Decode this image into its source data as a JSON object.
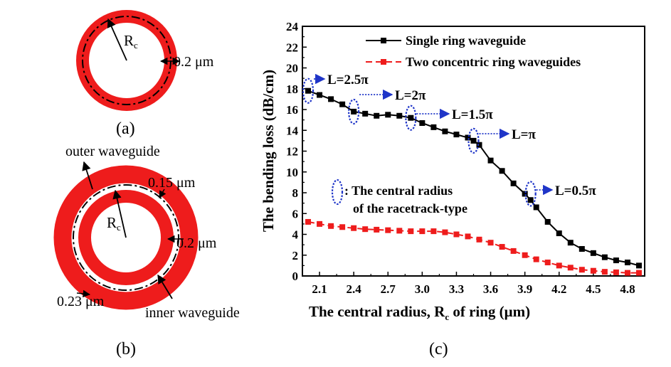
{
  "panels": {
    "a": {
      "caption": "(a)",
      "radius_label": "R",
      "radius_sub": "c",
      "width_label": "0.2 μm"
    },
    "b": {
      "caption": "(b)",
      "outer_label": "outer waveguide",
      "inner_label": "inner waveguide",
      "gap_label": "0.15 μm",
      "inner_width_label": "0.2 μm",
      "outer_width_label": "0.23 μm",
      "radius_label": "R",
      "radius_sub": "c"
    },
    "c": {
      "caption": "(c)"
    }
  },
  "colors": {
    "ring": "#ee1c1c",
    "single": "#000000",
    "concentric": "#ee1c1c",
    "annotation": "#1f35c8"
  },
  "chart_data": {
    "type": "line",
    "xlabel": "The central radius, R",
    "xlabel_sub": "c",
    "xlabel_tail": " of ring (μm)",
    "ylabel": "The bending loss (dB/cm)",
    "xlim": [
      1.95,
      4.95
    ],
    "ylim": [
      0,
      24
    ],
    "xticks": [
      2.1,
      2.4,
      2.7,
      3.0,
      3.3,
      3.6,
      3.9,
      4.2,
      4.5,
      4.8
    ],
    "xtick_labels": [
      "2.1",
      "2.4",
      "2.7",
      "3.0",
      "3.3",
      "3.6",
      "3.9",
      "4.2",
      "4.5",
      "4.8"
    ],
    "yticks": [
      0,
      2,
      4,
      6,
      8,
      10,
      12,
      14,
      16,
      18,
      20,
      22,
      24
    ],
    "ytick_labels": [
      "0",
      "2",
      "4",
      "6",
      "8",
      "10",
      "12",
      "14",
      "16",
      "18",
      "20",
      "22",
      "24"
    ],
    "legend_position": "top-right",
    "series": [
      {
        "name": "Single ring waveguide",
        "color": "#000000",
        "marker": "square",
        "x": [
          2.0,
          2.1,
          2.2,
          2.3,
          2.4,
          2.5,
          2.6,
          2.7,
          2.8,
          2.9,
          3.0,
          3.1,
          3.2,
          3.3,
          3.4,
          3.45,
          3.5,
          3.6,
          3.7,
          3.8,
          3.9,
          3.95,
          4.0,
          4.1,
          4.2,
          4.3,
          4.4,
          4.5,
          4.6,
          4.7,
          4.8,
          4.9
        ],
        "y": [
          17.8,
          17.4,
          17.0,
          16.5,
          15.8,
          15.6,
          15.4,
          15.5,
          15.4,
          15.2,
          14.7,
          14.3,
          13.9,
          13.6,
          13.3,
          13.0,
          12.6,
          11.1,
          10.1,
          8.9,
          7.9,
          7.3,
          6.6,
          5.2,
          4.1,
          3.2,
          2.6,
          2.2,
          1.8,
          1.5,
          1.3,
          1.0
        ]
      },
      {
        "name": "Two concentric ring waveguides",
        "color": "#ee1c1c",
        "marker": "square",
        "x": [
          2.0,
          2.1,
          2.2,
          2.3,
          2.4,
          2.5,
          2.6,
          2.7,
          2.8,
          2.9,
          3.0,
          3.1,
          3.2,
          3.3,
          3.4,
          3.5,
          3.6,
          3.7,
          3.8,
          3.9,
          4.0,
          4.1,
          4.2,
          4.3,
          4.4,
          4.5,
          4.6,
          4.7,
          4.8,
          4.9
        ],
        "y": [
          5.2,
          5.0,
          4.8,
          4.7,
          4.6,
          4.5,
          4.45,
          4.4,
          4.35,
          4.3,
          4.3,
          4.3,
          4.2,
          4.0,
          3.8,
          3.5,
          3.2,
          2.8,
          2.4,
          2.0,
          1.6,
          1.3,
          1.0,
          0.8,
          0.6,
          0.5,
          0.4,
          0.35,
          0.3,
          0.3
        ]
      }
    ],
    "annotations": [
      {
        "text": "L=2.5π",
        "x": 2.0,
        "y": 17.8
      },
      {
        "text": "L=2π",
        "x": 2.4,
        "y": 15.8
      },
      {
        "text": "L=1.5π",
        "x": 2.9,
        "y": 15.2
      },
      {
        "text": "L=π",
        "x": 3.45,
        "y": 13.0
      },
      {
        "text": "L=0.5π",
        "x": 3.95,
        "y": 7.9
      }
    ],
    "legend_note": {
      "text1": ": The central radius",
      "text2": "of the racetrack-type"
    }
  }
}
